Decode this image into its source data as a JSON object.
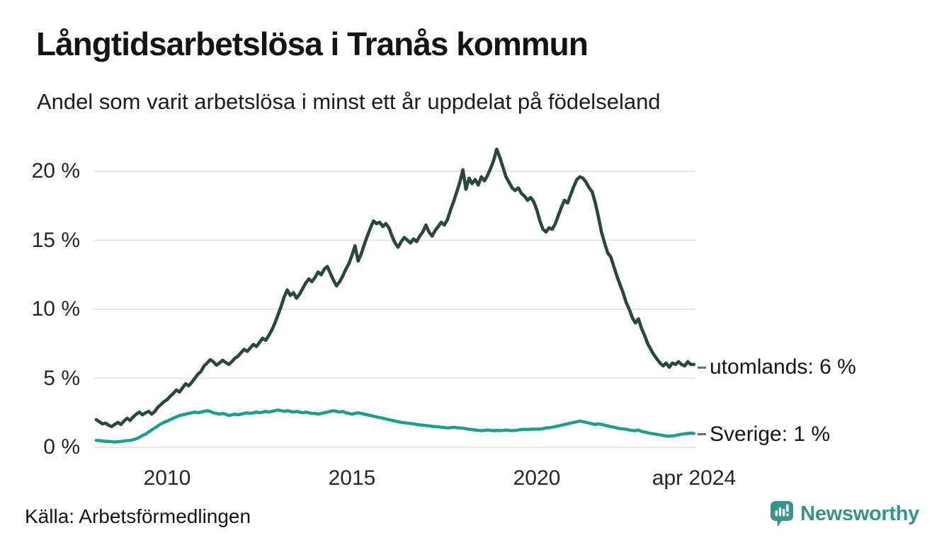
{
  "header": {
    "title": "Långtidsarbetslösa i Tranås kommun",
    "subtitle": "Andel som varit arbetslösa i minst ett år uppdelat på födelseland"
  },
  "footer": {
    "source": "Källa: Arbetsförmedlingen",
    "brand": "Newsworthy"
  },
  "colors": {
    "utomlands_line": "#2a473f",
    "sverige_line": "#1b9e8e",
    "gridline": "#e5e5e5",
    "brand_teal": "#36948b"
  },
  "chart_data": {
    "type": "line",
    "title": "Långtidsarbetslösa i Tranås kommun",
    "subtitle": "Andel som varit arbetslösa i minst ett år uppdelat på födelseland",
    "unit": "%",
    "frequency": "monthly",
    "x_start": 2008.0833,
    "x_domain": [
      2008.0833,
      2024.25
    ],
    "ylim": [
      0,
      22
    ],
    "grid": true,
    "y_ticks": [
      {
        "value": 0,
        "label": "0 %"
      },
      {
        "value": 5,
        "label": "5 %"
      },
      {
        "value": 10,
        "label": "10 %"
      },
      {
        "value": 15,
        "label": "15 %"
      },
      {
        "value": 20,
        "label": "20 %"
      }
    ],
    "x_ticks": [
      {
        "year": 2010,
        "label": "2010"
      },
      {
        "year": 2015,
        "label": "2015"
      },
      {
        "year": 2020,
        "label": "2020"
      },
      {
        "year": 2024.25,
        "label": "apr 2024"
      }
    ],
    "series": [
      {
        "name": "utomlands",
        "color": "#2a473f",
        "stroke_width": 4.6,
        "values": [
          2.0,
          1.85,
          1.7,
          1.75,
          1.6,
          1.5,
          1.65,
          1.8,
          1.65,
          1.9,
          2.1,
          1.95,
          2.2,
          2.4,
          2.55,
          2.35,
          2.5,
          2.6,
          2.4,
          2.6,
          2.9,
          3.1,
          3.3,
          3.45,
          3.7,
          3.9,
          4.15,
          4.0,
          4.3,
          4.6,
          4.45,
          4.7,
          5.0,
          5.3,
          5.5,
          5.9,
          6.1,
          6.35,
          6.2,
          5.95,
          6.1,
          6.3,
          6.15,
          6.0,
          6.2,
          6.45,
          6.6,
          6.85,
          7.1,
          6.95,
          7.2,
          7.45,
          7.3,
          7.6,
          7.9,
          7.75,
          8.1,
          8.5,
          9.0,
          9.6,
          10.2,
          10.9,
          11.4,
          11.0,
          11.2,
          10.8,
          11.1,
          11.5,
          11.9,
          12.2,
          12.0,
          12.3,
          12.7,
          12.5,
          12.9,
          13.1,
          12.6,
          12.1,
          11.7,
          12.0,
          12.4,
          12.9,
          13.3,
          13.9,
          14.6,
          13.5,
          14.0,
          14.7,
          15.3,
          15.9,
          16.4,
          16.2,
          16.3,
          16.0,
          16.2,
          15.9,
          15.3,
          14.8,
          14.5,
          14.9,
          15.2,
          15.0,
          14.8,
          15.1,
          14.9,
          15.3,
          15.6,
          16.1,
          15.6,
          15.3,
          15.7,
          16.0,
          16.3,
          16.1,
          16.5,
          17.2,
          17.8,
          18.5,
          19.2,
          20.1,
          18.7,
          19.5,
          19.1,
          19.4,
          19.0,
          19.6,
          19.3,
          19.7,
          20.2,
          20.8,
          21.6,
          21.0,
          20.3,
          19.6,
          19.2,
          18.8,
          18.6,
          18.8,
          18.4,
          18.2,
          17.9,
          18.1,
          17.8,
          17.2,
          16.4,
          15.8,
          15.6,
          15.9,
          15.8,
          16.2,
          16.8,
          17.4,
          17.9,
          17.7,
          18.3,
          18.9,
          19.4,
          19.6,
          19.5,
          19.2,
          18.8,
          18.5,
          17.7,
          16.7,
          15.6,
          14.8,
          14.1,
          13.8,
          13.1,
          12.4,
          11.8,
          11.2,
          10.5,
          10.0,
          9.4,
          9.0,
          9.3,
          8.6,
          8.1,
          7.5,
          7.1,
          6.7,
          6.4,
          6.1,
          5.9,
          6.1,
          5.8,
          6.1,
          6.0,
          6.2,
          6.0,
          5.9,
          6.2,
          6.0,
          6.0
        ]
      },
      {
        "name": "Sverige",
        "color": "#1b9e8e",
        "stroke_width": 4.4,
        "values": [
          0.5,
          0.48,
          0.45,
          0.43,
          0.42,
          0.4,
          0.38,
          0.4,
          0.42,
          0.45,
          0.48,
          0.5,
          0.55,
          0.62,
          0.72,
          0.85,
          0.95,
          1.1,
          1.25,
          1.4,
          1.55,
          1.7,
          1.8,
          1.9,
          2.0,
          2.1,
          2.2,
          2.3,
          2.35,
          2.4,
          2.45,
          2.5,
          2.55,
          2.5,
          2.55,
          2.6,
          2.65,
          2.6,
          2.5,
          2.45,
          2.4,
          2.45,
          2.4,
          2.3,
          2.35,
          2.4,
          2.35,
          2.4,
          2.45,
          2.5,
          2.45,
          2.5,
          2.55,
          2.5,
          2.55,
          2.6,
          2.55,
          2.6,
          2.65,
          2.7,
          2.65,
          2.6,
          2.65,
          2.6,
          2.55,
          2.6,
          2.55,
          2.5,
          2.55,
          2.5,
          2.45,
          2.45,
          2.4,
          2.45,
          2.5,
          2.55,
          2.6,
          2.65,
          2.6,
          2.55,
          2.6,
          2.5,
          2.45,
          2.4,
          2.45,
          2.5,
          2.45,
          2.4,
          2.35,
          2.3,
          2.25,
          2.2,
          2.15,
          2.1,
          2.05,
          2.0,
          1.95,
          1.9,
          1.85,
          1.8,
          1.78,
          1.75,
          1.72,
          1.7,
          1.65,
          1.62,
          1.6,
          1.58,
          1.55,
          1.52,
          1.5,
          1.48,
          1.45,
          1.43,
          1.4,
          1.42,
          1.45,
          1.42,
          1.4,
          1.38,
          1.35,
          1.3,
          1.28,
          1.25,
          1.22,
          1.2,
          1.22,
          1.25,
          1.22,
          1.2,
          1.22,
          1.2,
          1.22,
          1.25,
          1.22,
          1.2,
          1.22,
          1.25,
          1.28,
          1.3,
          1.28,
          1.3,
          1.32,
          1.3,
          1.32,
          1.35,
          1.4,
          1.42,
          1.45,
          1.5,
          1.55,
          1.6,
          1.65,
          1.7,
          1.75,
          1.8,
          1.85,
          1.9,
          1.85,
          1.8,
          1.75,
          1.7,
          1.65,
          1.7,
          1.65,
          1.6,
          1.55,
          1.5,
          1.45,
          1.4,
          1.35,
          1.33,
          1.3,
          1.25,
          1.22,
          1.2,
          1.25,
          1.15,
          1.1,
          1.05,
          1.0,
          0.97,
          0.93,
          0.9,
          0.85,
          0.82,
          0.8,
          0.82,
          0.85,
          0.9,
          0.95,
          0.98,
          1.0,
          1.02,
          1.0
        ]
      }
    ],
    "annotations": [
      {
        "series": "utomlands",
        "label": "utomlands: 6 %",
        "value_pct": 6
      },
      {
        "series": "Sverige",
        "label": "Sverige: 1 %",
        "value_pct": 1
      }
    ],
    "legend_position": "right-end-labels"
  }
}
